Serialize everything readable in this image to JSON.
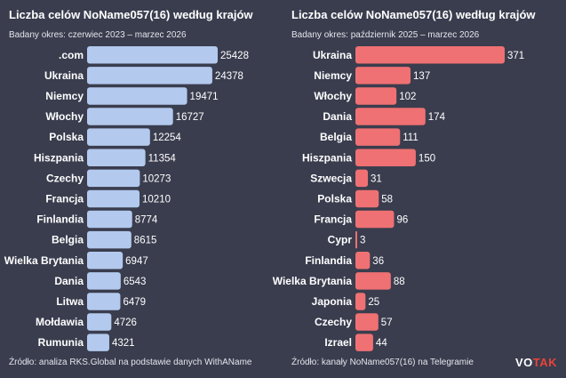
{
  "logo": {
    "prefix": "VO",
    "highlight": "TAK"
  },
  "charts": [
    {
      "title": "Liczba celów NoName057(16) według krajów",
      "subtitle": "Badany okres: czerwiec 2023 – marzec 2026",
      "source": "Źródło: analiza RKS.Global na podstawie danych WithAName"
    },
    {
      "title": "Liczba celów NoName057(16) według krajów",
      "subtitle": "Badany okres: październik 2025 – marzec 2026",
      "source": "Źródło: kanały NoName057(16) na Telegramie"
    }
  ],
  "chart_data": [
    {
      "type": "bar",
      "orientation": "horizontal",
      "color": "#b3c9ee",
      "categories": [
        ".com",
        "Ukraina",
        "Niemcy",
        "Włochy",
        "Polska",
        "Hiszpania",
        "Czechy",
        "Francja",
        "Finlandia",
        "Belgia",
        "Wielka Brytania",
        "Dania",
        "Litwa",
        "Mołdawia",
        "Rumunia"
      ],
      "values": [
        25428,
        24378,
        19471,
        16727,
        12254,
        11354,
        10273,
        10210,
        8774,
        8615,
        6947,
        6543,
        6479,
        4726,
        4321
      ],
      "title": "Liczba celów NoName057(16) według krajów",
      "subtitle": "Badany okres: czerwiec 2023 – marzec 2026",
      "xlim": [
        0,
        25428
      ],
      "grid": false,
      "legend": "none"
    },
    {
      "type": "bar",
      "orientation": "horizontal",
      "color": "#ef7173",
      "categories": [
        "Ukraina",
        "Niemcy",
        "Włochy",
        "Dania",
        "Belgia",
        "Hiszpania",
        "Szwecja",
        "Polska",
        "Francja",
        "Cypr",
        "Finlandia",
        "Wielka Brytania",
        "Japonia",
        "Czechy",
        "Izrael"
      ],
      "values": [
        371,
        137,
        102,
        174,
        111,
        150,
        31,
        58,
        96,
        3,
        36,
        88,
        25,
        57,
        44
      ],
      "title": "Liczba celów NoName057(16) według krajów",
      "subtitle": "Badany okres: październik 2025 – marzec 2026",
      "xlim": [
        0,
        371
      ],
      "grid": false,
      "legend": "none"
    }
  ]
}
